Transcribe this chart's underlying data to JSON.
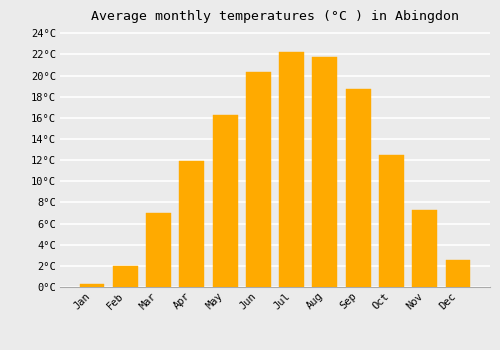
{
  "months": [
    "Jan",
    "Feb",
    "Mar",
    "Apr",
    "May",
    "Jun",
    "Jul",
    "Aug",
    "Sep",
    "Oct",
    "Nov",
    "Dec"
  ],
  "values": [
    0.3,
    2.0,
    7.0,
    11.9,
    16.3,
    20.3,
    22.2,
    21.8,
    18.7,
    12.5,
    7.3,
    2.6
  ],
  "bar_color": "#FFAA00",
  "bar_edge_color": "#FFAA00",
  "title": "Average monthly temperatures (°C ) in Abingdon",
  "title_fontsize": 9.5,
  "ylim": [
    0,
    24.5
  ],
  "yticks": [
    0,
    2,
    4,
    6,
    8,
    10,
    12,
    14,
    16,
    18,
    20,
    22,
    24
  ],
  "ytick_labels": [
    "0°C",
    "2°C",
    "4°C",
    "6°C",
    "8°C",
    "10°C",
    "12°C",
    "14°C",
    "16°C",
    "18°C",
    "20°C",
    "22°C",
    "24°C"
  ],
  "background_color": "#ebebeb",
  "grid_color": "#ffffff",
  "tick_label_fontsize": 7.5,
  "bar_width": 0.75
}
